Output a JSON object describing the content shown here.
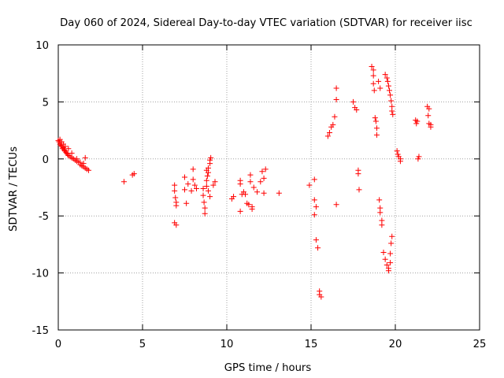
{
  "chart_data": {
    "type": "scatter",
    "title": "Day 060 of 2024, Sidereal Day-to-day VTEC variation (SDTVAR) for receiver iisc",
    "xlabel": "GPS time / hours",
    "ylabel": "SDTVAR / TECUs",
    "xlim": [
      0,
      25
    ],
    "ylim": [
      -15,
      10
    ],
    "xticks": [
      0,
      5,
      10,
      15,
      20,
      25
    ],
    "yticks": [
      -15,
      -10,
      -5,
      0,
      5,
      10
    ],
    "xtick_labels": [
      "0",
      "5",
      "10",
      "15",
      "20",
      "25"
    ],
    "ytick_labels": [
      "-15",
      "-10",
      "-5",
      "0",
      "5",
      "10"
    ],
    "grid": true,
    "marker": "+",
    "series": [
      {
        "name": "SDTVAR",
        "color": "#ff0000",
        "points": [
          [
            0.0,
            1.6
          ],
          [
            0.05,
            1.5
          ],
          [
            0.1,
            1.3
          ],
          [
            0.15,
            1.2
          ],
          [
            0.2,
            1.1
          ],
          [
            0.25,
            0.9
          ],
          [
            0.3,
            1.0
          ],
          [
            0.35,
            0.8
          ],
          [
            0.4,
            0.7
          ],
          [
            0.45,
            0.6
          ],
          [
            0.5,
            0.5
          ],
          [
            0.55,
            0.4
          ],
          [
            0.6,
            0.3
          ],
          [
            0.7,
            0.2
          ],
          [
            0.8,
            0.1
          ],
          [
            0.9,
            0.0
          ],
          [
            1.0,
            -0.1
          ],
          [
            1.1,
            -0.2
          ],
          [
            1.2,
            -0.3
          ],
          [
            1.3,
            -0.5
          ],
          [
            1.4,
            -0.6
          ],
          [
            1.5,
            -0.7
          ],
          [
            1.6,
            -0.8
          ],
          [
            1.7,
            -0.9
          ],
          [
            1.8,
            -1.0
          ],
          [
            0.2,
            1.5
          ],
          [
            0.3,
            1.3
          ],
          [
            0.4,
            1.1
          ],
          [
            1.6,
            0.1
          ],
          [
            0.1,
            1.7
          ],
          [
            0.6,
            0.9
          ],
          [
            0.8,
            0.5
          ],
          [
            1.1,
            0.0
          ],
          [
            1.3,
            -0.3
          ],
          [
            1.5,
            -0.4
          ],
          [
            3.9,
            -2.0
          ],
          [
            4.4,
            -1.4
          ],
          [
            4.5,
            -1.3
          ],
          [
            6.9,
            -2.3
          ],
          [
            6.9,
            -2.8
          ],
          [
            6.95,
            -3.4
          ],
          [
            7.0,
            -3.8
          ],
          [
            7.0,
            -4.1
          ],
          [
            6.9,
            -5.6
          ],
          [
            7.0,
            -5.8
          ],
          [
            7.5,
            -1.6
          ],
          [
            7.5,
            -2.7
          ],
          [
            7.6,
            -3.9
          ],
          [
            7.7,
            -2.2
          ],
          [
            7.9,
            -2.8
          ],
          [
            8.0,
            -0.9
          ],
          [
            8.0,
            -1.8
          ],
          [
            8.2,
            -2.6
          ],
          [
            8.1,
            -2.3
          ],
          [
            8.6,
            -2.6
          ],
          [
            8.6,
            -3.2
          ],
          [
            8.65,
            -3.8
          ],
          [
            8.7,
            -4.3
          ],
          [
            8.7,
            -4.8
          ],
          [
            8.8,
            -1.9
          ],
          [
            8.8,
            -2.4
          ],
          [
            8.9,
            -1.2
          ],
          [
            8.9,
            -0.8
          ],
          [
            9.0,
            -0.4
          ],
          [
            9.0,
            -0.1
          ],
          [
            9.05,
            0.1
          ],
          [
            8.8,
            -1.0
          ],
          [
            8.85,
            -1.5
          ],
          [
            9.2,
            -2.3
          ],
          [
            9.3,
            -2.0
          ],
          [
            8.9,
            -2.8
          ],
          [
            9.0,
            -3.3
          ],
          [
            10.3,
            -3.5
          ],
          [
            10.4,
            -3.3
          ],
          [
            10.8,
            -1.9
          ],
          [
            10.8,
            -2.2
          ],
          [
            10.9,
            -3.1
          ],
          [
            10.8,
            -4.6
          ],
          [
            11.0,
            -2.9
          ],
          [
            11.1,
            -3.1
          ],
          [
            11.2,
            -3.9
          ],
          [
            11.3,
            -4.0
          ],
          [
            11.4,
            -1.4
          ],
          [
            11.5,
            -4.2
          ],
          [
            11.5,
            -4.4
          ],
          [
            11.4,
            -2.0
          ],
          [
            11.6,
            -2.5
          ],
          [
            11.8,
            -2.9
          ],
          [
            12.0,
            -2.0
          ],
          [
            12.1,
            -1.1
          ],
          [
            12.2,
            -3.0
          ],
          [
            12.3,
            -0.9
          ],
          [
            12.2,
            -1.7
          ],
          [
            13.1,
            -3.0
          ],
          [
            14.9,
            -2.3
          ],
          [
            15.2,
            -1.8
          ],
          [
            15.2,
            -3.6
          ],
          [
            15.3,
            -4.2
          ],
          [
            15.2,
            -4.9
          ],
          [
            15.3,
            -7.1
          ],
          [
            15.4,
            -7.8
          ],
          [
            15.5,
            -11.6
          ],
          [
            15.5,
            -11.9
          ],
          [
            15.6,
            -12.1
          ],
          [
            16.0,
            2.0
          ],
          [
            16.1,
            2.3
          ],
          [
            16.2,
            2.8
          ],
          [
            16.3,
            3.0
          ],
          [
            16.4,
            3.7
          ],
          [
            16.5,
            5.2
          ],
          [
            16.5,
            6.2
          ],
          [
            16.5,
            -4.0
          ],
          [
            17.5,
            5.0
          ],
          [
            17.6,
            4.5
          ],
          [
            17.7,
            4.3
          ],
          [
            17.8,
            -1.0
          ],
          [
            17.8,
            -1.3
          ],
          [
            17.85,
            -2.7
          ],
          [
            18.6,
            8.1
          ],
          [
            18.7,
            7.8
          ],
          [
            18.7,
            7.3
          ],
          [
            18.7,
            6.6
          ],
          [
            18.75,
            6.0
          ],
          [
            18.8,
            3.6
          ],
          [
            18.85,
            3.3
          ],
          [
            18.9,
            2.7
          ],
          [
            18.9,
            2.1
          ],
          [
            19.0,
            6.8
          ],
          [
            19.1,
            6.2
          ],
          [
            19.1,
            -4.7
          ],
          [
            19.1,
            -4.3
          ],
          [
            19.2,
            -5.4
          ],
          [
            19.05,
            -3.6
          ],
          [
            19.2,
            -5.8
          ],
          [
            19.4,
            7.4
          ],
          [
            19.5,
            7.1
          ],
          [
            19.55,
            6.8
          ],
          [
            19.6,
            6.4
          ],
          [
            19.65,
            6.0
          ],
          [
            19.7,
            5.6
          ],
          [
            19.75,
            5.1
          ],
          [
            19.8,
            4.6
          ],
          [
            19.8,
            4.2
          ],
          [
            19.85,
            3.9
          ],
          [
            19.3,
            -8.2
          ],
          [
            19.4,
            -8.8
          ],
          [
            19.5,
            -9.3
          ],
          [
            19.6,
            -9.6
          ],
          [
            19.7,
            -9.1
          ],
          [
            19.7,
            -8.3
          ],
          [
            19.75,
            -7.4
          ],
          [
            19.8,
            -6.8
          ],
          [
            19.6,
            -9.8
          ],
          [
            20.1,
            0.7
          ],
          [
            20.15,
            0.4
          ],
          [
            20.2,
            0.2
          ],
          [
            20.3,
            0.0
          ],
          [
            20.3,
            -0.2
          ],
          [
            21.2,
            3.4
          ],
          [
            21.25,
            3.1
          ],
          [
            21.3,
            3.3
          ],
          [
            21.4,
            0.2
          ],
          [
            21.35,
            0.0
          ],
          [
            21.9,
            4.6
          ],
          [
            22.0,
            4.4
          ],
          [
            21.95,
            3.8
          ],
          [
            22.0,
            3.1
          ],
          [
            22.1,
            3.0
          ],
          [
            22.1,
            2.8
          ]
        ]
      }
    ]
  }
}
